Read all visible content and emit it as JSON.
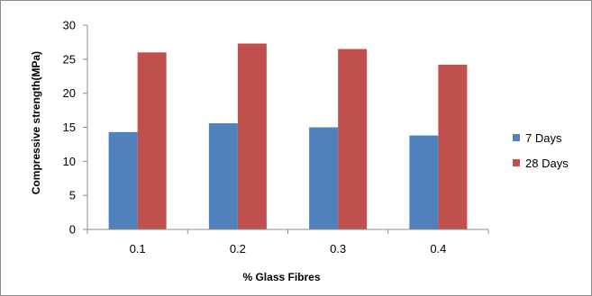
{
  "chart_data": {
    "type": "bar",
    "title": "",
    "xlabel": "% Glass Fibres",
    "ylabel": "Compressive strength(MPa)",
    "categories": [
      "0.1",
      "0.2",
      "0.3",
      "0.4"
    ],
    "ylim": [
      0,
      30
    ],
    "yticks": [
      0,
      5,
      10,
      15,
      20,
      25,
      30
    ],
    "grid": false,
    "legend_position": "right",
    "series": [
      {
        "name": "7 Days",
        "color": "#4f81bd",
        "values": [
          14.3,
          15.6,
          15.0,
          13.8
        ]
      },
      {
        "name": "28 Days",
        "color": "#c0504d",
        "values": [
          26.0,
          27.3,
          26.5,
          24.2
        ]
      }
    ]
  }
}
